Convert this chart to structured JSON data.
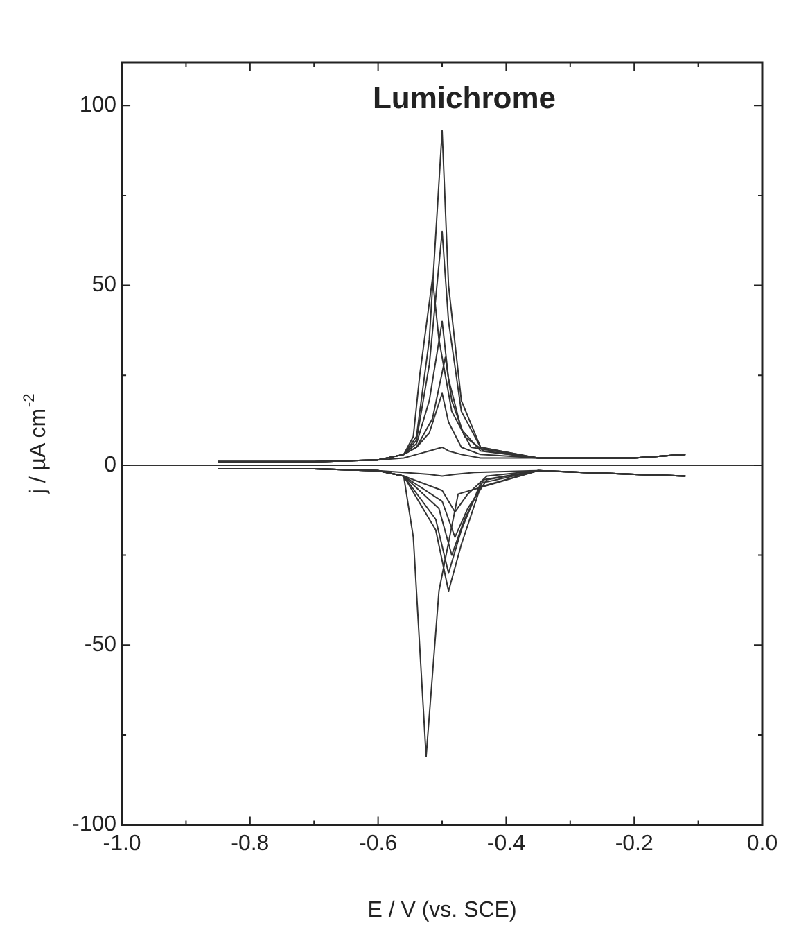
{
  "chart_data": {
    "type": "line",
    "title": "Lumichrome",
    "xlabel": "E / V (vs. SCE)",
    "ylabel": "j / µA cm$^{-2}$",
    "xlim": [
      -1.0,
      0.0
    ],
    "xticks": [
      {
        "value": -1.0,
        "label": "-1.0"
      },
      {
        "value": -0.9,
        "label": null
      },
      {
        "value": -0.8,
        "label": "-0.8"
      },
      {
        "value": -0.7,
        "label": null
      },
      {
        "value": -0.6,
        "label": "-0.6"
      },
      {
        "value": -0.5,
        "label": null
      },
      {
        "value": -0.4,
        "label": "-0.4"
      },
      {
        "value": -0.3,
        "label": null
      },
      {
        "value": -0.2,
        "label": "-0.2"
      },
      {
        "value": -0.1,
        "label": null
      },
      {
        "value": 0.0,
        "label": "0.0"
      }
    ],
    "ylim": [
      -100,
      112
    ],
    "yticks": [
      -100,
      {
        "value": -75,
        "label": null
      },
      -50,
      {
        "value": -25,
        "label": null
      },
      0,
      {
        "value": 25,
        "label": null
      },
      50,
      {
        "value": 75,
        "label": null
      },
      100
    ],
    "grid": false,
    "legend": false,
    "marker": "none",
    "line_style": "solid",
    "ref_lines": [
      {
        "axis": "y",
        "value": 0,
        "color": "#333333"
      }
    ],
    "series": [
      {
        "color": "#333333",
        "x": [
          -0.85,
          -0.7,
          -0.6,
          -0.56,
          -0.54,
          -0.52,
          -0.5,
          -0.49,
          -0.47,
          -0.44,
          -0.35,
          -0.2,
          -0.12
        ],
        "values": [
          1,
          1,
          1.5,
          2,
          3,
          4,
          5,
          4,
          3,
          2,
          2,
          2,
          3
        ]
      },
      {
        "color": "#333333",
        "x": [
          -0.85,
          -0.7,
          -0.6,
          -0.56,
          -0.52,
          -0.5,
          -0.48,
          -0.45,
          -0.35,
          -0.2,
          -0.12
        ],
        "values": [
          -1,
          -1,
          -1.5,
          -2,
          -2.5,
          -3,
          -2.5,
          -2,
          -1.5,
          -2.5,
          -3
        ]
      },
      {
        "color": "#333333",
        "x": [
          -0.85,
          -0.7,
          -0.6,
          -0.56,
          -0.54,
          -0.52,
          -0.5,
          -0.49,
          -0.47,
          -0.44,
          -0.35,
          -0.2,
          -0.12
        ],
        "values": [
          1,
          1,
          1.5,
          3,
          5,
          9,
          20,
          12,
          5,
          3,
          2,
          2,
          3
        ]
      },
      {
        "color": "#333333",
        "x": [
          -0.85,
          -0.7,
          -0.6,
          -0.56,
          -0.5,
          -0.48,
          -0.46,
          -0.43,
          -0.35,
          -0.2,
          -0.12
        ],
        "values": [
          -1,
          -1,
          -1.5,
          -3,
          -7,
          -13,
          -8,
          -3,
          -1.5,
          -2.5,
          -3
        ]
      },
      {
        "color": "#333333",
        "x": [
          -0.85,
          -0.7,
          -0.6,
          -0.56,
          -0.54,
          -0.515,
          -0.495,
          -0.485,
          -0.465,
          -0.435,
          -0.35,
          -0.2,
          -0.12
        ],
        "values": [
          1,
          1,
          1.5,
          3,
          5,
          13,
          30,
          18,
          8,
          4,
          2,
          2,
          3
        ]
      },
      {
        "color": "#333333",
        "x": [
          -0.85,
          -0.7,
          -0.6,
          -0.56,
          -0.5,
          -0.48,
          -0.46,
          -0.43,
          -0.35,
          -0.2,
          -0.12
        ],
        "values": [
          -1,
          -1,
          -1.5,
          -3,
          -10,
          -20,
          -12,
          -4,
          -1.5,
          -2.5,
          -3
        ]
      },
      {
        "color": "#333333",
        "x": [
          -0.85,
          -0.7,
          -0.6,
          -0.56,
          -0.54,
          -0.52,
          -0.5,
          -0.49,
          -0.47,
          -0.44,
          -0.35,
          -0.2,
          -0.12
        ],
        "values": [
          1,
          1,
          1.5,
          3,
          6,
          18,
          40,
          24,
          10,
          4,
          2,
          2,
          3
        ]
      },
      {
        "color": "#333333",
        "x": [
          -0.85,
          -0.7,
          -0.6,
          -0.56,
          -0.505,
          -0.485,
          -0.465,
          -0.435,
          -0.35,
          -0.2,
          -0.12
        ],
        "values": [
          -1,
          -1,
          -1.5,
          -3,
          -12,
          -25,
          -15,
          -4,
          -1.5,
          -2.5,
          -3
        ]
      },
      {
        "color": "#333333",
        "x": [
          -0.85,
          -0.7,
          -0.6,
          -0.56,
          -0.545,
          -0.535,
          -0.515,
          -0.505,
          -0.485,
          -0.455,
          -0.35,
          -0.2,
          -0.12
        ],
        "values": [
          1,
          1,
          1.5,
          3,
          8,
          25,
          52,
          35,
          15,
          5,
          2,
          2,
          3
        ]
      },
      {
        "color": "#333333",
        "x": [
          -0.85,
          -0.7,
          -0.6,
          -0.56,
          -0.51,
          -0.49,
          -0.47,
          -0.44,
          -0.35,
          -0.2,
          -0.12
        ],
        "values": [
          -1,
          -1,
          -1.5,
          -3,
          -15,
          -30,
          -18,
          -5,
          -1.5,
          -2.5,
          -3
        ]
      },
      {
        "color": "#333333",
        "x": [
          -0.85,
          -0.7,
          -0.6,
          -0.56,
          -0.54,
          -0.52,
          -0.5,
          -0.49,
          -0.47,
          -0.44,
          -0.35,
          -0.2,
          -0.12
        ],
        "values": [
          1,
          1,
          1.5,
          3,
          7,
          28,
          65,
          40,
          15,
          5,
          2,
          2,
          3
        ]
      },
      {
        "color": "#333333",
        "x": [
          -0.85,
          -0.7,
          -0.6,
          -0.56,
          -0.51,
          -0.49,
          -0.47,
          -0.44,
          -0.35,
          -0.2,
          -0.12
        ],
        "values": [
          -1,
          -1,
          -1.5,
          -3,
          -18,
          -35,
          -22,
          -6,
          -1.5,
          -2.5,
          -3
        ]
      },
      {
        "color": "#333333",
        "x": [
          -0.85,
          -0.7,
          -0.6,
          -0.56,
          -0.54,
          -0.52,
          -0.5,
          -0.49,
          -0.47,
          -0.44,
          -0.35,
          -0.2,
          -0.12
        ],
        "values": [
          1,
          1,
          1.5,
          3,
          8,
          35,
          93,
          50,
          18,
          5,
          2,
          2,
          3
        ]
      },
      {
        "color": "#333333",
        "x": [
          -0.85,
          -0.7,
          -0.6,
          -0.56,
          -0.545,
          -0.525,
          -0.505,
          -0.475,
          -0.35,
          -0.2,
          -0.12
        ],
        "values": [
          -1,
          -1,
          -1.5,
          -3,
          -20,
          -81,
          -35,
          -8,
          -1.5,
          -2.5,
          -3
        ]
      }
    ]
  }
}
